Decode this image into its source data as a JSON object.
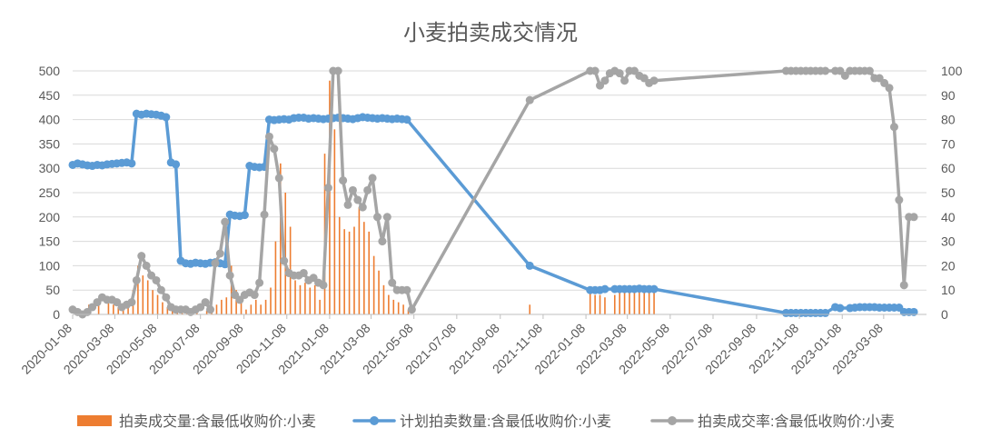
{
  "chart_data": {
    "type": "combo",
    "title": "小麦拍卖成交情况",
    "y_left": {
      "min": 0,
      "max": 500,
      "ticks": [
        0,
        50,
        100,
        150,
        200,
        250,
        300,
        350,
        400,
        450,
        500
      ]
    },
    "y_right": {
      "min": 0,
      "max": 100,
      "ticks": [
        0,
        10,
        20,
        30,
        40,
        50,
        60,
        70,
        80,
        90,
        100
      ]
    },
    "x_range": [
      "2020-01-08",
      "2023-05-08"
    ],
    "x_tick_labels": [
      "2020-01-08",
      "2020-03-08",
      "2020-05-08",
      "2020-07-08",
      "2020-09-08",
      "2020-11-08",
      "2021-01-08",
      "2021-03-08",
      "2021-05-08",
      "2021-07-08",
      "2021-09-08",
      "2021-11-08",
      "2022-01-08",
      "2022-03-08",
      "2022-05-08",
      "2022-07-08",
      "2022-09-08",
      "2022-11-08",
      "2023-01-08",
      "2023-03-08"
    ],
    "legend_position": "bottom",
    "series": [
      {
        "name": "拍卖成交量:含最低收购价:小麦",
        "kind": "bar",
        "axis": "left",
        "color": "#ED7D31",
        "x": [
          "2020-01-17",
          "2020-01-31",
          "2020-02-14",
          "2020-02-28",
          "2020-03-06",
          "2020-03-13",
          "2020-03-20",
          "2020-03-27",
          "2020-04-03",
          "2020-04-10",
          "2020-04-17",
          "2020-04-24",
          "2020-05-01",
          "2020-05-08",
          "2020-05-15",
          "2020-05-22",
          "2020-05-29",
          "2020-06-05",
          "2020-06-12",
          "2020-06-19",
          "2020-06-26",
          "2020-07-03",
          "2020-07-17",
          "2020-07-24",
          "2020-07-31",
          "2020-08-07",
          "2020-08-14",
          "2020-08-21",
          "2020-08-28",
          "2020-09-04",
          "2020-09-11",
          "2020-09-18",
          "2020-09-25",
          "2020-10-02",
          "2020-10-09",
          "2020-10-16",
          "2020-10-23",
          "2020-10-30",
          "2020-11-06",
          "2020-11-13",
          "2020-11-20",
          "2020-11-27",
          "2020-12-04",
          "2020-12-11",
          "2020-12-18",
          "2020-12-25",
          "2021-01-01",
          "2021-01-08",
          "2021-01-15",
          "2021-01-22",
          "2021-01-29",
          "2021-02-05",
          "2021-02-12",
          "2021-02-19",
          "2021-02-26",
          "2021-03-05",
          "2021-03-12",
          "2021-03-19",
          "2021-03-26",
          "2021-04-02",
          "2021-04-09",
          "2021-04-16",
          "2021-04-23",
          "2021-04-30",
          "2021-10-20",
          "2022-01-14",
          "2022-01-21",
          "2022-01-28",
          "2022-02-04",
          "2022-02-18",
          "2022-02-25",
          "2022-03-04",
          "2022-03-11",
          "2022-03-18",
          "2022-03-25",
          "2022-04-01",
          "2022-04-08",
          "2022-04-15"
        ],
        "values": [
          5,
          20,
          30,
          25,
          20,
          15,
          20,
          25,
          50,
          100,
          80,
          70,
          50,
          40,
          25,
          15,
          10,
          8,
          5,
          5,
          3,
          5,
          8,
          10,
          20,
          30,
          35,
          100,
          50,
          25,
          10,
          20,
          30,
          20,
          30,
          55,
          150,
          310,
          250,
          180,
          70,
          60,
          65,
          55,
          60,
          30,
          330,
          480,
          380,
          200,
          175,
          170,
          180,
          220,
          190,
          170,
          120,
          90,
          60,
          40,
          30,
          25,
          20,
          10,
          20,
          45,
          40,
          40,
          35,
          40,
          45,
          45,
          45,
          45,
          45,
          45,
          45,
          45
        ]
      },
      {
        "name": "计划拍卖数量:含最低收购价:小麦",
        "kind": "line",
        "axis": "left",
        "color": "#5B9BD5",
        "x": [
          "2020-01-08",
          "2020-01-15",
          "2020-01-22",
          "2020-01-29",
          "2020-02-05",
          "2020-02-12",
          "2020-02-19",
          "2020-02-26",
          "2020-03-04",
          "2020-03-11",
          "2020-03-18",
          "2020-03-25",
          "2020-04-01",
          "2020-04-08",
          "2020-04-15",
          "2020-04-22",
          "2020-04-29",
          "2020-05-06",
          "2020-05-13",
          "2020-05-20",
          "2020-05-27",
          "2020-06-03",
          "2020-06-10",
          "2020-06-17",
          "2020-06-24",
          "2020-07-01",
          "2020-07-08",
          "2020-07-15",
          "2020-07-22",
          "2020-07-29",
          "2020-08-05",
          "2020-08-12",
          "2020-08-19",
          "2020-08-26",
          "2020-09-02",
          "2020-09-09",
          "2020-09-16",
          "2020-09-23",
          "2020-09-30",
          "2020-10-07",
          "2020-10-14",
          "2020-10-21",
          "2020-10-28",
          "2020-11-04",
          "2020-11-11",
          "2020-11-18",
          "2020-11-25",
          "2020-12-02",
          "2020-12-09",
          "2020-12-16",
          "2020-12-23",
          "2020-12-30",
          "2021-01-06",
          "2021-01-13",
          "2021-01-20",
          "2021-01-27",
          "2021-02-03",
          "2021-02-10",
          "2021-02-17",
          "2021-02-24",
          "2021-03-03",
          "2021-03-10",
          "2021-03-17",
          "2021-03-24",
          "2021-03-31",
          "2021-04-07",
          "2021-04-14",
          "2021-04-21",
          "2021-04-28",
          "2021-10-20",
          "2022-01-14",
          "2022-01-21",
          "2022-01-28",
          "2022-02-04",
          "2022-02-18",
          "2022-02-25",
          "2022-03-04",
          "2022-03-11",
          "2022-03-18",
          "2022-03-25",
          "2022-04-01",
          "2022-04-08",
          "2022-04-15",
          "2022-10-20",
          "2022-10-27",
          "2022-11-03",
          "2022-11-10",
          "2022-11-17",
          "2022-11-24",
          "2022-12-01",
          "2022-12-08",
          "2022-12-15",
          "2022-12-29",
          "2023-01-05",
          "2023-01-19",
          "2023-01-26",
          "2023-02-02",
          "2023-02-09",
          "2023-02-16",
          "2023-02-23",
          "2023-03-02",
          "2023-03-09",
          "2023-03-16",
          "2023-03-23",
          "2023-03-30",
          "2023-04-06",
          "2023-04-13",
          "2023-04-20"
        ],
        "values": [
          307,
          310,
          308,
          306,
          305,
          307,
          306,
          308,
          309,
          310,
          311,
          312,
          310,
          412,
          410,
          412,
          411,
          410,
          408,
          405,
          312,
          308,
          110,
          105,
          104,
          106,
          105,
          104,
          106,
          107,
          105,
          103,
          205,
          203,
          202,
          204,
          305,
          303,
          302,
          303,
          400,
          399,
          400,
          401,
          400,
          403,
          404,
          404,
          402,
          403,
          402,
          401,
          402,
          403,
          404,
          403,
          402,
          401,
          403,
          405,
          404,
          403,
          402,
          403,
          402,
          401,
          402,
          401,
          400,
          100,
          50,
          50,
          50,
          52,
          52,
          52,
          52,
          52,
          52,
          53,
          52,
          52,
          52,
          3,
          3,
          3,
          3,
          3,
          3,
          3,
          3,
          3,
          15,
          13,
          13,
          14,
          15,
          15,
          15,
          15,
          14,
          14,
          14,
          14,
          14,
          5,
          5,
          5
        ]
      },
      {
        "name": "拍卖成交率:含最低收购价:小麦",
        "kind": "line",
        "axis": "right",
        "color": "#A5A5A5",
        "x": [
          "2020-01-08",
          "2020-01-15",
          "2020-01-22",
          "2020-01-29",
          "2020-02-05",
          "2020-02-12",
          "2020-02-19",
          "2020-02-26",
          "2020-03-04",
          "2020-03-11",
          "2020-03-18",
          "2020-03-25",
          "2020-04-01",
          "2020-04-08",
          "2020-04-15",
          "2020-04-22",
          "2020-04-29",
          "2020-05-06",
          "2020-05-13",
          "2020-05-20",
          "2020-05-27",
          "2020-06-03",
          "2020-06-10",
          "2020-06-17",
          "2020-06-24",
          "2020-07-01",
          "2020-07-08",
          "2020-07-15",
          "2020-07-22",
          "2020-07-29",
          "2020-08-05",
          "2020-08-12",
          "2020-08-19",
          "2020-08-26",
          "2020-09-02",
          "2020-09-09",
          "2020-09-16",
          "2020-09-23",
          "2020-09-30",
          "2020-10-07",
          "2020-10-14",
          "2020-10-21",
          "2020-10-28",
          "2020-11-04",
          "2020-11-11",
          "2020-11-18",
          "2020-11-25",
          "2020-12-02",
          "2020-12-09",
          "2020-12-16",
          "2020-12-23",
          "2020-12-30",
          "2021-01-06",
          "2021-01-13",
          "2021-01-20",
          "2021-01-27",
          "2021-02-03",
          "2021-02-10",
          "2021-02-17",
          "2021-02-24",
          "2021-03-03",
          "2021-03-10",
          "2021-03-17",
          "2021-03-24",
          "2021-03-31",
          "2021-04-07",
          "2021-04-14",
          "2021-04-21",
          "2021-04-28",
          "2021-05-05",
          "2021-10-20",
          "2022-01-14",
          "2022-01-21",
          "2022-01-28",
          "2022-02-04",
          "2022-02-11",
          "2022-02-18",
          "2022-02-25",
          "2022-03-04",
          "2022-03-11",
          "2022-03-18",
          "2022-03-25",
          "2022-04-01",
          "2022-04-08",
          "2022-04-15",
          "2022-10-20",
          "2022-10-27",
          "2022-11-03",
          "2022-11-10",
          "2022-11-17",
          "2022-11-24",
          "2022-12-01",
          "2022-12-08",
          "2022-12-15",
          "2022-12-29",
          "2023-01-05",
          "2023-01-12",
          "2023-01-19",
          "2023-01-26",
          "2023-02-02",
          "2023-02-09",
          "2023-02-16",
          "2023-02-23",
          "2023-03-02",
          "2023-03-09",
          "2023-03-16",
          "2023-03-23",
          "2023-03-30",
          "2023-04-06",
          "2023-04-13",
          "2023-04-20"
        ],
        "values": [
          2,
          1,
          0,
          1,
          3,
          5,
          7,
          6,
          6,
          5,
          3,
          4,
          5,
          14,
          24,
          20,
          16,
          14,
          10,
          7,
          3,
          2,
          2,
          2,
          1,
          2,
          3,
          5,
          2,
          21,
          25,
          38,
          16,
          8,
          6,
          8,
          9,
          8,
          13,
          41,
          73,
          68,
          56,
          22,
          17,
          16,
          16,
          17,
          14,
          15,
          13,
          12,
          52,
          100,
          100,
          55,
          45,
          51,
          47,
          44,
          51,
          56,
          40,
          30,
          40,
          13,
          10,
          10,
          10,
          2,
          88,
          100,
          100,
          94,
          96,
          99,
          100,
          99,
          96,
          100,
          100,
          98,
          97,
          95,
          96,
          100,
          100,
          100,
          100,
          100,
          100,
          100,
          100,
          100,
          100,
          100,
          98,
          100,
          100,
          100,
          100,
          100,
          97,
          97,
          95,
          93,
          77,
          47,
          12,
          40,
          40
        ]
      }
    ]
  }
}
